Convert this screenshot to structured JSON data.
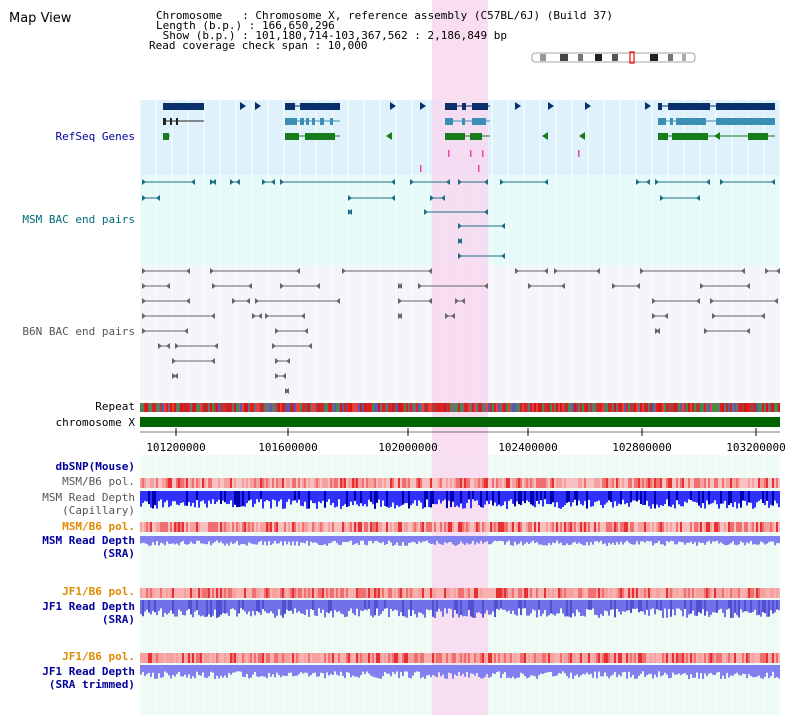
{
  "title": "Map View",
  "info": {
    "line1": "Chromosome   : Chromosome X, reference assembly (C57BL/6J) (Build 37)",
    "line2": "Length (b.p.) : 166,650,296",
    "line3": " Show (b.p.) : 101,180,714-103,367,562 : 2,186,849 bp",
    "line4": "Read coverage check span : 10,000"
  },
  "tracks": {
    "refseq": "RefSeq Genes",
    "msm_bac": "MSM BAC end pairs",
    "b6n_bac": "B6N BAC end pairs",
    "repeat": "Repeat",
    "chromosome": "chromosome X",
    "dbsnp": "dbSNP(Mouse)",
    "msm_b6_pol_1": "MSM/B6 pol.",
    "msm_depth_cap_1": "MSM Read Depth",
    "msm_depth_cap_2": "(Capillary)",
    "msm_b6_pol_2": "MSM/B6 pol.",
    "msm_depth_sra_1": "MSM Read Depth",
    "msm_depth_sra_2": "(SRA)",
    "jf1_pol_1": "JF1/B6 pol.",
    "jf1_depth_1": "JF1 Read Depth",
    "jf1_depth_2": "(SRA)",
    "jf1_pol_2": "JF1/B6 pol.",
    "jf1_trim_1": "JF1 Read Depth",
    "jf1_trim_2": "(SRA trimmed)"
  },
  "axis": {
    "ticks": [
      "101200000",
      "101600000",
      "102000000",
      "102400000",
      "102800000",
      "103200000"
    ],
    "range_start": 101180714,
    "range_end": 103367562
  },
  "colors": {
    "refseq_bg": "#dff2fb",
    "track_bg": "#e6fafa",
    "highlight": "#f8d8f0",
    "gene_dark": "#0b2f6a",
    "gene_mid": "#3b8fb5",
    "gene_green": "#167d1a",
    "msm_bac": "#1f6e86",
    "b6n_bac": "#666666",
    "chromosome": "#006400",
    "label_blue": "#00009a",
    "label_teal": "#006a7a",
    "label_orange": "#e08a00",
    "label_gray": "#555555"
  }
}
